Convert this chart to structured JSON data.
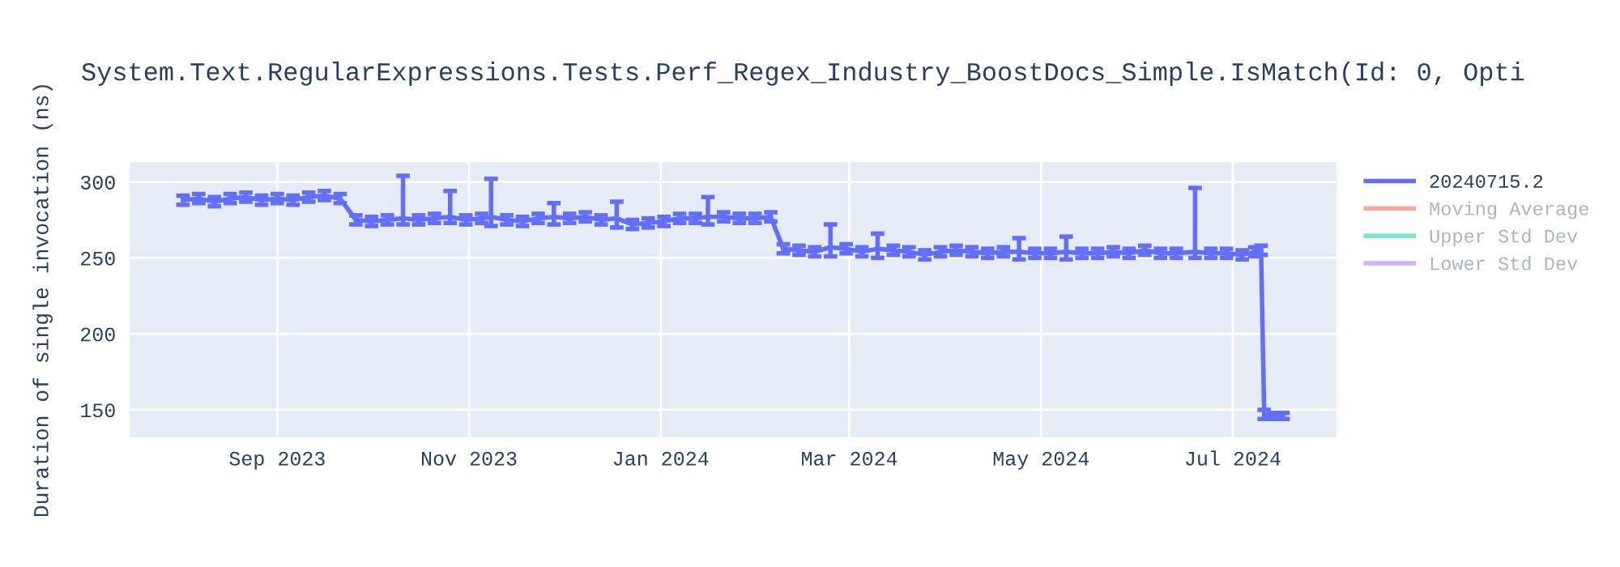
{
  "chart_data": {
    "type": "line",
    "title": "System.Text.RegularExpressions.Tests.Perf_Regex_Industry_BoostDocs_Simple.IsMatch(Id: 0, Opti",
    "ylabel": "Duration of single invocation (ns)",
    "x": [
      "2023-08-02",
      "2023-08-07",
      "2023-08-12",
      "2023-08-17",
      "2023-08-22",
      "2023-08-27",
      "2023-09-01",
      "2023-09-06",
      "2023-09-11",
      "2023-09-16",
      "2023-09-21",
      "2023-09-26",
      "2023-10-01",
      "2023-10-06",
      "2023-10-11",
      "2023-10-16",
      "2023-10-21",
      "2023-10-26",
      "2023-10-31",
      "2023-11-05",
      "2023-11-08",
      "2023-11-13",
      "2023-11-18",
      "2023-11-23",
      "2023-11-28",
      "2023-12-03",
      "2023-12-08",
      "2023-12-13",
      "2023-12-18",
      "2023-12-23",
      "2023-12-28",
      "2024-01-02",
      "2024-01-07",
      "2024-01-12",
      "2024-01-16",
      "2024-01-21",
      "2024-01-26",
      "2024-01-31",
      "2024-02-05",
      "2024-02-09",
      "2024-02-14",
      "2024-02-19",
      "2024-02-24",
      "2024-02-29",
      "2024-03-05",
      "2024-03-10",
      "2024-03-15",
      "2024-03-20",
      "2024-03-25",
      "2024-03-30",
      "2024-04-04",
      "2024-04-09",
      "2024-04-14",
      "2024-04-19",
      "2024-04-24",
      "2024-04-29",
      "2024-05-04",
      "2024-05-09",
      "2024-05-14",
      "2024-05-19",
      "2024-05-24",
      "2024-05-29",
      "2024-06-03",
      "2024-06-08",
      "2024-06-13",
      "2024-06-19",
      "2024-06-24",
      "2024-06-29",
      "2024-07-04",
      "2024-07-08",
      "2024-07-10",
      "2024-07-11",
      "2024-07-14",
      "2024-07-17"
    ],
    "series": [
      {
        "name": "20240715.2",
        "color": "#636efa",
        "values": [
          288,
          289,
          287,
          289,
          290,
          288,
          289,
          288,
          290,
          291,
          289,
          275,
          274,
          275,
          276,
          275,
          276,
          277,
          275,
          276,
          277,
          275,
          274,
          276,
          277,
          276,
          277,
          275,
          276,
          272,
          273,
          274,
          276,
          276,
          277,
          277,
          276,
          276,
          277,
          256,
          255,
          254,
          257,
          256,
          254,
          256,
          255,
          254,
          252,
          254,
          255,
          254,
          253,
          254,
          254,
          253,
          253,
          254,
          253,
          253,
          254,
          253,
          255,
          253,
          253,
          254,
          253,
          253,
          252,
          254,
          255,
          147,
          146,
          146
        ],
        "errors": [
          3,
          3,
          3,
          3,
          3,
          3,
          3,
          3,
          3,
          3,
          3,
          3,
          3,
          3,
          [
            272,
            304
          ],
          3,
          3,
          [
            273,
            294
          ],
          3,
          3,
          [
            271,
            302
          ],
          3,
          3,
          3,
          [
            272,
            286
          ],
          3,
          3,
          3,
          [
            270,
            287
          ],
          3,
          3,
          3,
          3,
          3,
          [
            272,
            290
          ],
          3,
          3,
          3,
          3,
          3,
          3,
          3,
          [
            251,
            272
          ],
          3,
          3,
          [
            250,
            266
          ],
          3,
          3,
          3,
          3,
          3,
          3,
          3,
          3,
          [
            249,
            263
          ],
          3,
          3,
          [
            249,
            264
          ],
          3,
          3,
          3,
          3,
          3,
          3,
          3,
          [
            250,
            296
          ],
          3,
          3,
          3,
          3,
          3,
          3,
          2,
          2
        ]
      },
      {
        "name": "Moving Average",
        "color": "#ef553b",
        "values": [
          null,
          null,
          null,
          null,
          null,
          null,
          null,
          null,
          null,
          null,
          null,
          null,
          null,
          null,
          null,
          null,
          null,
          null,
          null,
          null,
          null,
          null,
          null,
          null,
          null,
          null,
          null,
          null,
          null,
          null,
          null,
          null,
          null,
          null,
          null,
          null,
          null,
          null,
          null,
          null,
          null,
          null,
          null,
          null,
          null,
          null,
          null,
          null,
          null,
          null,
          null,
          null,
          null,
          null,
          null,
          null,
          null,
          null,
          null,
          null,
          null,
          null,
          null,
          null,
          null,
          null,
          null,
          null,
          null,
          null,
          null,
          null,
          null,
          null
        ]
      },
      {
        "name": "Upper Std Dev",
        "color": "#00cc96",
        "values": [
          null,
          null,
          null,
          null,
          null,
          null,
          null,
          null,
          null,
          null,
          null,
          null,
          null,
          null,
          null,
          null,
          null,
          null,
          null,
          null,
          null,
          null,
          null,
          null,
          null,
          null,
          null,
          null,
          null,
          null,
          null,
          null,
          null,
          null,
          null,
          null,
          null,
          null,
          null,
          null,
          null,
          null,
          null,
          null,
          null,
          null,
          null,
          null,
          null,
          null,
          null,
          null,
          null,
          null,
          null,
          null,
          null,
          null,
          null,
          null,
          null,
          null,
          null,
          null,
          null,
          null,
          null,
          null,
          null,
          null,
          null,
          null,
          null,
          null
        ]
      },
      {
        "name": "Lower Std Dev",
        "color": "#ab63fa",
        "values": [
          null,
          null,
          null,
          null,
          null,
          null,
          null,
          null,
          null,
          null,
          null,
          null,
          null,
          null,
          null,
          null,
          null,
          null,
          null,
          null,
          null,
          null,
          null,
          null,
          null,
          null,
          null,
          null,
          null,
          null,
          null,
          null,
          null,
          null,
          null,
          null,
          null,
          null,
          null,
          null,
          null,
          null,
          null,
          null,
          null,
          null,
          null,
          null,
          null,
          null,
          null,
          null,
          null,
          null,
          null,
          null,
          null,
          null,
          null,
          null,
          null,
          null,
          null,
          null,
          null,
          null,
          null,
          null,
          null,
          null,
          null,
          null,
          null,
          null
        ]
      }
    ],
    "xlim": [
      "2023-07-16",
      "2024-08-03"
    ],
    "xticks": [
      {
        "value": "2023-09-01",
        "label": "Sep 2023"
      },
      {
        "value": "2023-11-01",
        "label": "Nov 2023"
      },
      {
        "value": "2024-01-01",
        "label": "Jan 2024"
      },
      {
        "value": "2024-03-01",
        "label": "Mar 2024"
      },
      {
        "value": "2024-05-01",
        "label": "May 2024"
      },
      {
        "value": "2024-07-01",
        "label": "Jul 2024"
      }
    ],
    "ylim": [
      132,
      313
    ],
    "yticks": [
      150,
      200,
      250,
      300
    ],
    "grid": true,
    "legend": "right"
  }
}
